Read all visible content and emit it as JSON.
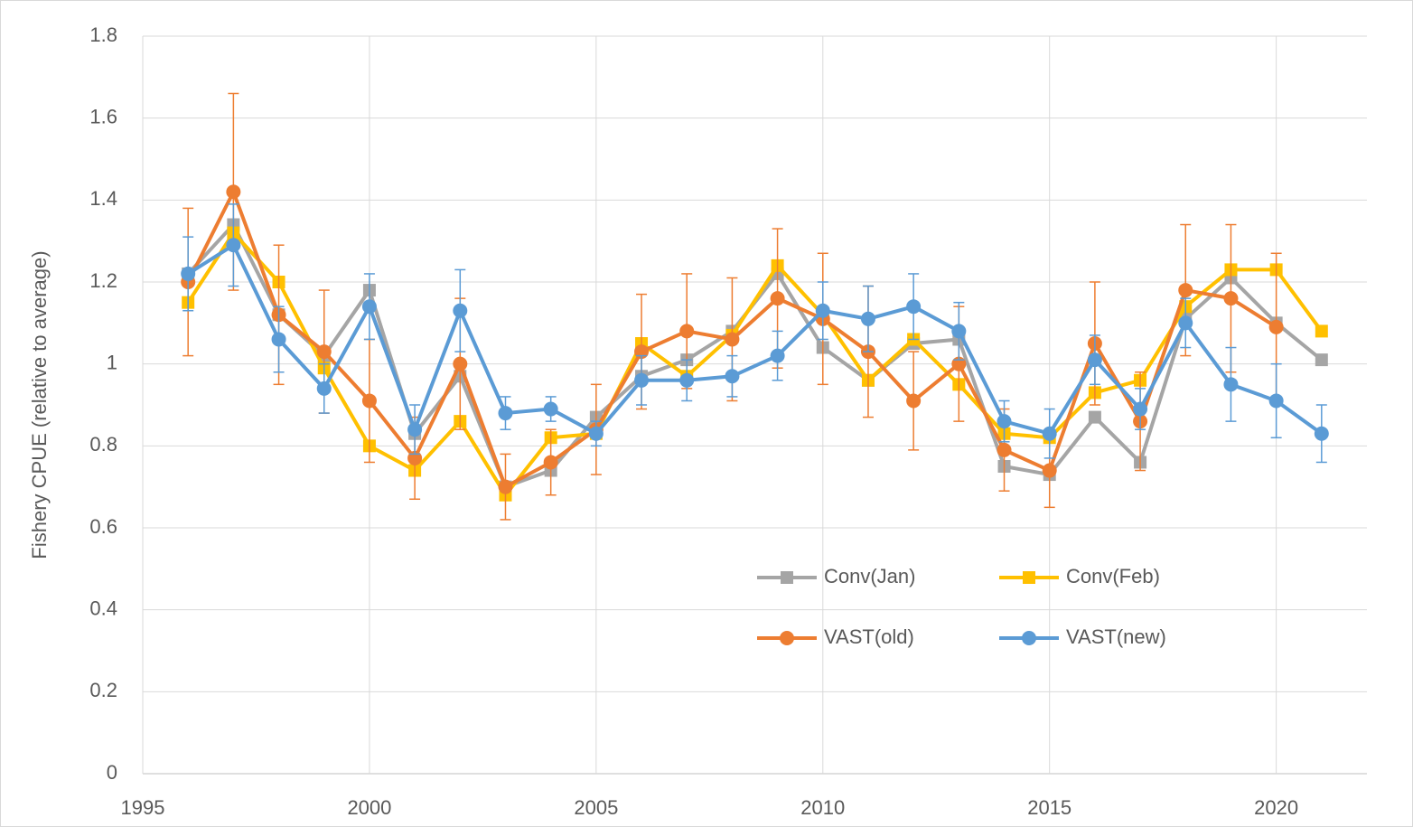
{
  "chart_data": {
    "type": "line",
    "y_label": "Fishery CPUE (relative to average)",
    "x": [
      1996,
      1997,
      1998,
      1999,
      2000,
      2001,
      2002,
      2003,
      2004,
      2005,
      2006,
      2007,
      2008,
      2009,
      2010,
      2011,
      2012,
      2013,
      2014,
      2015,
      2016,
      2017,
      2018,
      2019,
      2020,
      2021
    ],
    "xlim": [
      1995,
      2022
    ],
    "xticks": [
      1995,
      2000,
      2005,
      2010,
      2015,
      2020
    ],
    "ylim": [
      0,
      1.8
    ],
    "yticks": [
      0,
      0.2,
      0.4,
      0.6,
      0.8,
      1,
      1.2,
      1.4,
      1.6,
      1.8
    ],
    "grid": true,
    "series": [
      {
        "name": "Conv(Jan)",
        "color": "#a5a5a5",
        "marker": "square",
        "values": [
          1.22,
          1.34,
          1.12,
          1.02,
          1.18,
          0.83,
          0.97,
          0.7,
          0.74,
          0.87,
          0.97,
          1.01,
          1.08,
          1.22,
          1.04,
          0.96,
          1.05,
          1.06,
          0.75,
          0.73,
          0.87,
          0.76,
          1.11,
          1.21,
          1.1,
          1.01
        ]
      },
      {
        "name": "Conv(Feb)",
        "color": "#ffc000",
        "marker": "square",
        "values": [
          1.15,
          1.32,
          1.2,
          0.99,
          0.8,
          0.74,
          0.86,
          0.68,
          0.82,
          0.83,
          1.05,
          0.97,
          1.07,
          1.24,
          1.12,
          0.96,
          1.06,
          0.95,
          0.83,
          0.82,
          0.93,
          0.96,
          1.14,
          1.23,
          1.23,
          1.08
        ]
      },
      {
        "name": "VAST(old)",
        "color": "#ed7d31",
        "marker": "circle",
        "values": [
          1.2,
          1.42,
          1.12,
          1.03,
          0.91,
          0.77,
          1.0,
          0.7,
          0.76,
          0.84,
          1.03,
          1.08,
          1.06,
          1.16,
          1.11,
          1.03,
          0.91,
          1.0,
          0.79,
          0.74,
          1.05,
          0.86,
          1.18,
          1.16,
          1.09,
          null
        ],
        "error": [
          0.18,
          0.24,
          0.17,
          0.15,
          0.15,
          0.1,
          0.16,
          0.08,
          0.08,
          0.11,
          0.14,
          0.14,
          0.15,
          0.17,
          0.16,
          0.16,
          0.12,
          0.14,
          0.1,
          0.09,
          0.15,
          0.12,
          0.16,
          0.18,
          0.18,
          null
        ]
      },
      {
        "name": "VAST(new)",
        "color": "#5b9bd5",
        "marker": "circle",
        "values": [
          1.22,
          1.29,
          1.06,
          0.94,
          1.14,
          0.84,
          1.13,
          0.88,
          0.89,
          0.83,
          0.96,
          0.96,
          0.97,
          1.02,
          1.13,
          1.11,
          1.14,
          1.08,
          0.86,
          0.83,
          1.01,
          0.89,
          1.1,
          0.95,
          0.91,
          0.83
        ],
        "error": [
          0.09,
          0.1,
          0.08,
          0.06,
          0.08,
          0.06,
          0.1,
          0.04,
          0.03,
          0.03,
          0.06,
          0.05,
          0.05,
          0.06,
          0.07,
          0.08,
          0.08,
          0.07,
          0.05,
          0.06,
          0.06,
          0.05,
          0.06,
          0.09,
          0.09,
          0.07
        ]
      }
    ]
  }
}
